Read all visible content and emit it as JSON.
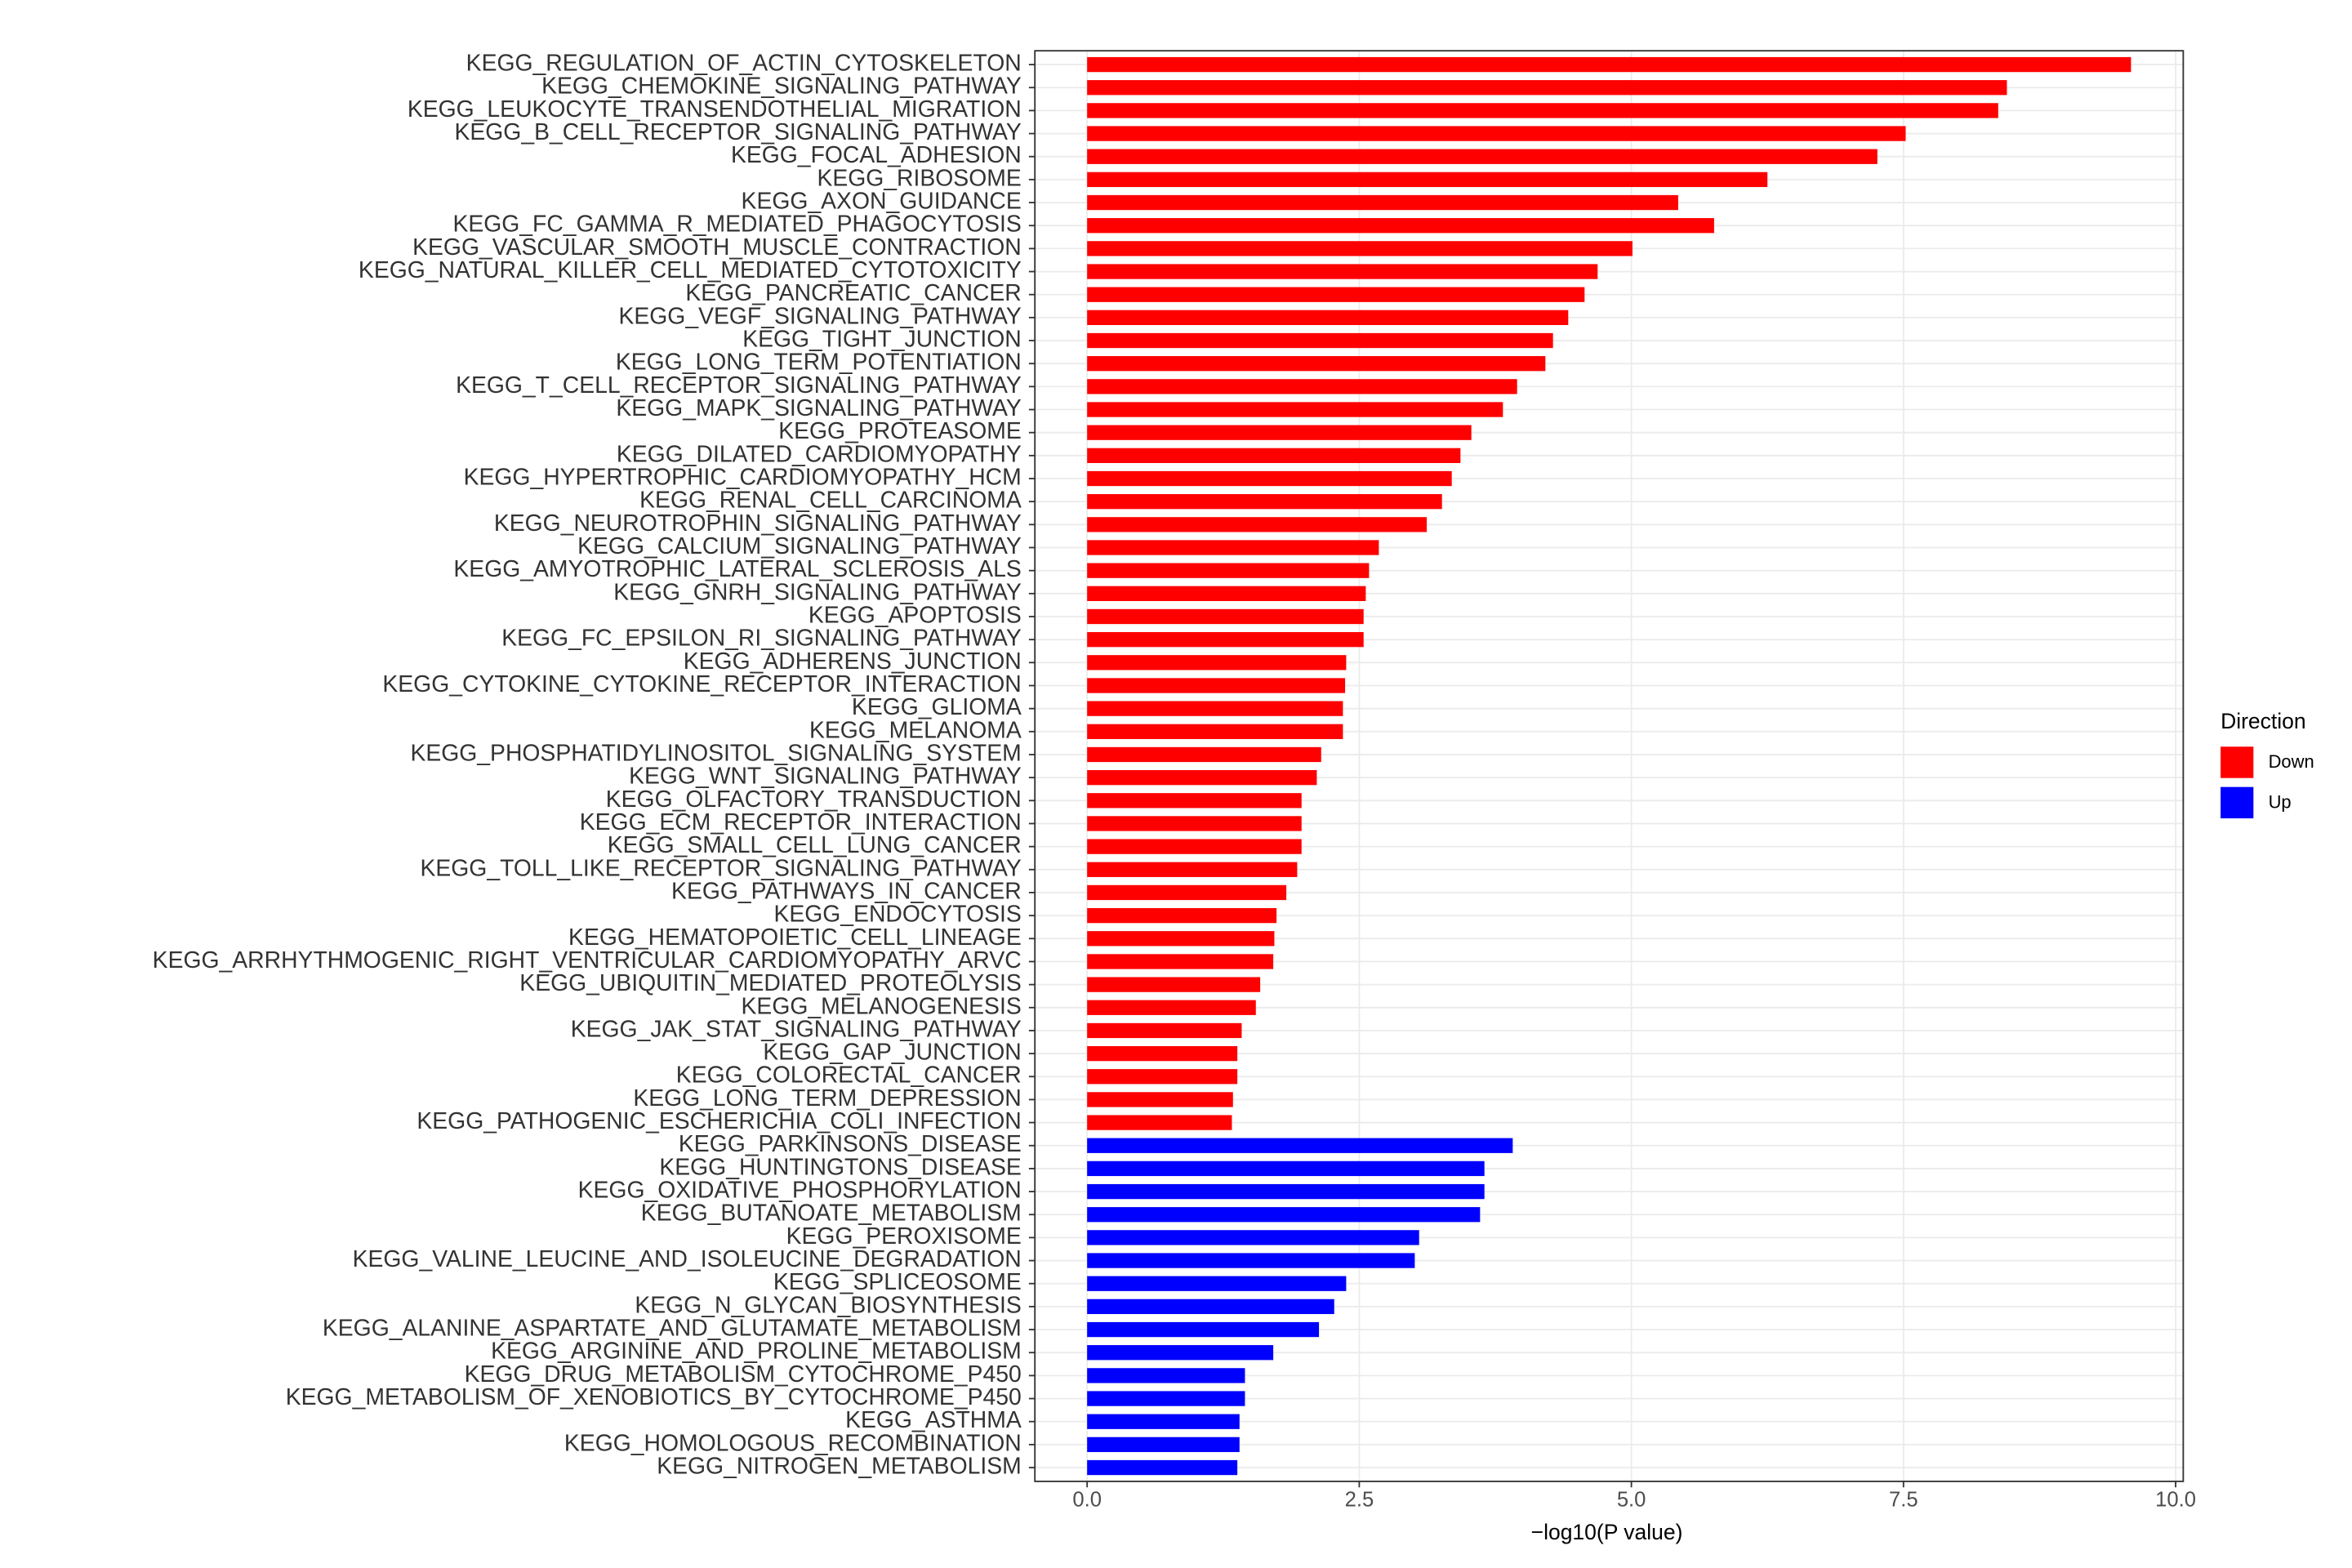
{
  "chart_data": {
    "type": "hbar",
    "x_label": "−log10(P value)",
    "legend_title": "Direction",
    "categories": [
      "KEGG_REGULATION_OF_ACTIN_CYTOSKELETON",
      "KEGG_CHEMOKINE_SIGNALING_PATHWAY",
      "KEGG_LEUKOCYTE_TRANSENDOTHELIAL_MIGRATION",
      "KEGG_B_CELL_RECEPTOR_SIGNALING_PATHWAY",
      "KEGG_FOCAL_ADHESION",
      "KEGG_RIBOSOME",
      "KEGG_AXON_GUIDANCE",
      "KEGG_FC_GAMMA_R_MEDIATED_PHAGOCYTOSIS",
      "KEGG_VASCULAR_SMOOTH_MUSCLE_CONTRACTION",
      "KEGG_NATURAL_KILLER_CELL_MEDIATED_CYTOTOXICITY",
      "KEGG_PANCREATIC_CANCER",
      "KEGG_VEGF_SIGNALING_PATHWAY",
      "KEGG_TIGHT_JUNCTION",
      "KEGG_LONG_TERM_POTENTIATION",
      "KEGG_T_CELL_RECEPTOR_SIGNALING_PATHWAY",
      "KEGG_MAPK_SIGNALING_PATHWAY",
      "KEGG_PROTEASOME",
      "KEGG_DILATED_CARDIOMYOPATHY",
      "KEGG_HYPERTROPHIC_CARDIOMYOPATHY_HCM",
      "KEGG_RENAL_CELL_CARCINOMA",
      "KEGG_NEUROTROPHIN_SIGNALING_PATHWAY",
      "KEGG_CALCIUM_SIGNALING_PATHWAY",
      "KEGG_AMYOTROPHIC_LATERAL_SCLEROSIS_ALS",
      "KEGG_GNRH_SIGNALING_PATHWAY",
      "KEGG_APOPTOSIS",
      "KEGG_FC_EPSILON_RI_SIGNALING_PATHWAY",
      "KEGG_ADHERENS_JUNCTION",
      "KEGG_CYTOKINE_CYTOKINE_RECEPTOR_INTERACTION",
      "KEGG_GLIOMA",
      "KEGG_MELANOMA",
      "KEGG_PHOSPHATIDYLINOSITOL_SIGNALING_SYSTEM",
      "KEGG_WNT_SIGNALING_PATHWAY",
      "KEGG_OLFACTORY_TRANSDUCTION",
      "KEGG_ECM_RECEPTOR_INTERACTION",
      "KEGG_SMALL_CELL_LUNG_CANCER",
      "KEGG_TOLL_LIKE_RECEPTOR_SIGNALING_PATHWAY",
      "KEGG_PATHWAYS_IN_CANCER",
      "KEGG_ENDOCYTOSIS",
      "KEGG_HEMATOPOIETIC_CELL_LINEAGE",
      "KEGG_ARRHYTHMOGENIC_RIGHT_VENTRICULAR_CARDIOMYOPATHY_ARVC",
      "KEGG_UBIQUITIN_MEDIATED_PROTEOLYSIS",
      "KEGG_MELANOGENESIS",
      "KEGG_JAK_STAT_SIGNALING_PATHWAY",
      "KEGG_GAP_JUNCTION",
      "KEGG_COLORECTAL_CANCER",
      "KEGG_LONG_TERM_DEPRESSION",
      "KEGG_PATHOGENIC_ESCHERICHIA_COLI_INFECTION",
      "KEGG_PARKINSONS_DISEASE",
      "KEGG_HUNTINGTONS_DISEASE",
      "KEGG_OXIDATIVE_PHOSPHORYLATION",
      "KEGG_BUTANOATE_METABOLISM",
      "KEGG_PEROXISOME",
      "KEGG_VALINE_LEUCINE_AND_ISOLEUCINE_DEGRADATION",
      "KEGG_SPLICEOSOME",
      "KEGG_N_GLYCAN_BIOSYNTHESIS",
      "KEGG_ALANINE_ASPARTATE_AND_GLUTAMATE_METABOLISM",
      "KEGG_ARGININE_AND_PROLINE_METABOLISM",
      "KEGG_DRUG_METABOLISM_CYTOCHROME_P450",
      "KEGG_METABOLISM_OF_XENOBIOTICS_BY_CYTOCHROME_P450",
      "KEGG_ASTHMA",
      "KEGG_HOMOLOGOUS_RECOMBINATION",
      "KEGG_NITROGEN_METABOLISM"
    ],
    "series": [
      {
        "name": "Down",
        "color": "#ff0000",
        "values": [
          9.59,
          8.45,
          8.37,
          7.52,
          7.26,
          6.25,
          5.43,
          5.76,
          5.01,
          4.69,
          4.57,
          4.42,
          4.28,
          4.21,
          3.95,
          3.82,
          3.53,
          3.43,
          3.35,
          3.26,
          3.12,
          2.68,
          2.59,
          2.56,
          2.54,
          2.54,
          2.38,
          2.37,
          2.35,
          2.35,
          2.15,
          2.11,
          1.97,
          1.97,
          1.97,
          1.93,
          1.83,
          1.74,
          1.72,
          1.71,
          1.59,
          1.55,
          1.42,
          1.38,
          1.38,
          1.34,
          1.33,
          null,
          null,
          null,
          null,
          null,
          null,
          null,
          null,
          null,
          null,
          null,
          null,
          null,
          null,
          null
        ]
      },
      {
        "name": "Up",
        "color": "#0000ff",
        "values": [
          null,
          null,
          null,
          null,
          null,
          null,
          null,
          null,
          null,
          null,
          null,
          null,
          null,
          null,
          null,
          null,
          null,
          null,
          null,
          null,
          null,
          null,
          null,
          null,
          null,
          null,
          null,
          null,
          null,
          null,
          null,
          null,
          null,
          null,
          null,
          null,
          null,
          null,
          null,
          null,
          null,
          null,
          null,
          null,
          null,
          null,
          null,
          3.91,
          3.65,
          3.65,
          3.61,
          3.05,
          3.01,
          2.38,
          2.27,
          2.13,
          1.71,
          1.45,
          1.45,
          1.4,
          1.4,
          1.38
        ]
      }
    ],
    "xlim": [
      -0.48,
      10.07
    ],
    "xticks": [
      {
        "value": 0,
        "label": "0.0"
      },
      {
        "value": 2.5,
        "label": "2.5"
      },
      {
        "value": 5,
        "label": "5.0"
      },
      {
        "value": 7.5,
        "label": "7.5"
      },
      {
        "value": 10,
        "label": "10.0"
      }
    ],
    "grid": true
  }
}
